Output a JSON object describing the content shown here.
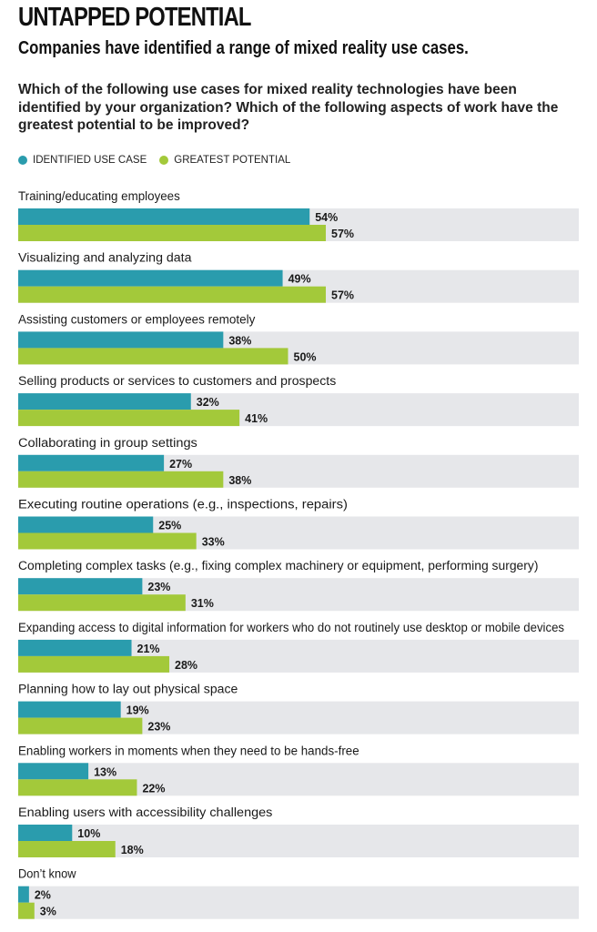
{
  "colors": {
    "identified": "#2a9cad",
    "potential": "#a3c93a",
    "track": "#e6e7ea",
    "text": "#1a1a1a"
  },
  "header": {
    "title": "UNTAPPED POTENTIAL",
    "subtitle": "Companies have identified a range of mixed reality use cases.",
    "question": "Which of the following use cases for mixed reality technologies have been identified by your organization? Which of the following aspects of work have the greatest potential to be improved?"
  },
  "legend": {
    "items": [
      {
        "label": "IDENTIFIED USE CASE",
        "color": "#2a9cad"
      },
      {
        "label": "GREATEST POTENTIAL",
        "color": "#a3c93a"
      }
    ]
  },
  "chart_data": {
    "type": "bar",
    "orientation": "horizontal",
    "unit": "%",
    "xlim": [
      0,
      100
    ],
    "grid": false,
    "legend_position": "top-left",
    "categories": [
      "Training/educating employees",
      "Visualizing and analyzing data",
      "Assisting customers or employees remotely",
      "Selling products or services to customers and prospects",
      "Collaborating in group settings",
      "Executing routine operations (e.g., inspections, repairs)",
      "Completing complex tasks (e.g., fixing complex machinery or equipment, performing surgery)",
      "Expanding access to digital information for workers who do not routinely use desktop or mobile devices",
      "Planning how to lay out physical space",
      "Enabling workers in moments when they need to be hands-free",
      "Enabling users with accessibility challenges",
      "Don’t know"
    ],
    "series": [
      {
        "name": "IDENTIFIED USE CASE",
        "color": "#2a9cad",
        "values": [
          54,
          49,
          38,
          32,
          27,
          25,
          23,
          21,
          19,
          13,
          10,
          2
        ]
      },
      {
        "name": "GREATEST POTENTIAL",
        "color": "#a3c93a",
        "values": [
          57,
          57,
          50,
          41,
          38,
          33,
          31,
          28,
          23,
          22,
          18,
          3
        ]
      }
    ]
  }
}
